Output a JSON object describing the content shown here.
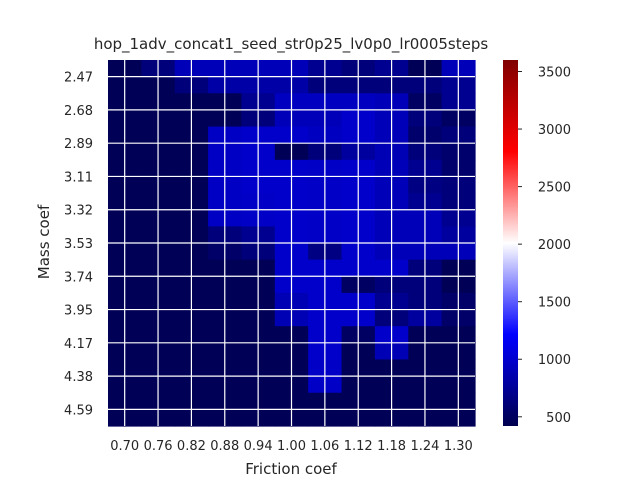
{
  "chart_data": {
    "type": "heatmap",
    "title": "hop_1adv_concat1_seed_str0p25_lv0p0_lr0005steps",
    "xlabel": "Friction coef",
    "ylabel": "Mass coef",
    "x_tick_labels": [
      "0.70",
      "0.76",
      "0.82",
      "0.88",
      "0.94",
      "1.00",
      "1.06",
      "1.12",
      "1.18",
      "1.24",
      "1.30"
    ],
    "y_tick_labels": [
      "2.47",
      "2.68",
      "2.89",
      "3.11",
      "3.32",
      "3.53",
      "3.74",
      "3.95",
      "4.17",
      "4.38",
      "4.59"
    ],
    "grid": true,
    "colorscale": "seismic",
    "colorbar": {
      "vmin": 420,
      "vmax": 3600,
      "ticks": [
        500,
        1000,
        1500,
        2000,
        2500,
        3000,
        3500
      ]
    },
    "rows": 22,
    "cols": 22,
    "values": [
      [
        460,
        460,
        620,
        620,
        900,
        900,
        900,
        900,
        900,
        900,
        900,
        900,
        720,
        720,
        620,
        620,
        720,
        720,
        460,
        460,
        900,
        900
      ],
      [
        460,
        460,
        460,
        460,
        620,
        620,
        820,
        820,
        820,
        820,
        820,
        820,
        620,
        620,
        620,
        620,
        620,
        620,
        620,
        620,
        720,
        720
      ],
      [
        460,
        460,
        460,
        460,
        460,
        460,
        460,
        460,
        720,
        720,
        940,
        940,
        940,
        940,
        940,
        940,
        900,
        900,
        520,
        520,
        720,
        720
      ],
      [
        460,
        460,
        460,
        460,
        460,
        460,
        460,
        460,
        620,
        620,
        900,
        900,
        900,
        900,
        980,
        980,
        900,
        900,
        620,
        620,
        520,
        520
      ],
      [
        460,
        460,
        460,
        460,
        460,
        460,
        950,
        950,
        980,
        980,
        980,
        980,
        940,
        940,
        980,
        980,
        900,
        900,
        560,
        560,
        620,
        620
      ],
      [
        460,
        460,
        460,
        460,
        460,
        460,
        950,
        950,
        980,
        980,
        460,
        460,
        620,
        620,
        780,
        780,
        880,
        880,
        620,
        620,
        560,
        560
      ],
      [
        460,
        460,
        460,
        460,
        460,
        460,
        950,
        950,
        980,
        980,
        980,
        980,
        960,
        960,
        980,
        980,
        900,
        900,
        720,
        720,
        560,
        560
      ],
      [
        460,
        460,
        460,
        460,
        460,
        460,
        950,
        950,
        980,
        980,
        980,
        980,
        960,
        960,
        980,
        980,
        900,
        900,
        660,
        660,
        620,
        620
      ],
      [
        460,
        460,
        460,
        460,
        460,
        460,
        950,
        950,
        960,
        960,
        980,
        980,
        960,
        960,
        980,
        980,
        900,
        900,
        720,
        720,
        620,
        620
      ],
      [
        460,
        460,
        460,
        460,
        460,
        460,
        950,
        950,
        960,
        960,
        980,
        980,
        960,
        960,
        980,
        980,
        900,
        900,
        900,
        900,
        720,
        720
      ],
      [
        460,
        460,
        460,
        460,
        460,
        460,
        620,
        620,
        720,
        720,
        980,
        980,
        960,
        960,
        980,
        980,
        900,
        900,
        900,
        900,
        780,
        780
      ],
      [
        460,
        460,
        460,
        460,
        460,
        460,
        540,
        540,
        620,
        620,
        980,
        980,
        660,
        660,
        980,
        980,
        900,
        900,
        900,
        900,
        900,
        900
      ],
      [
        460,
        460,
        460,
        460,
        460,
        460,
        460,
        460,
        460,
        460,
        980,
        980,
        980,
        980,
        980,
        980,
        980,
        980,
        620,
        620,
        460,
        460
      ],
      [
        460,
        460,
        460,
        460,
        460,
        460,
        460,
        460,
        460,
        460,
        980,
        980,
        980,
        980,
        520,
        520,
        620,
        620,
        620,
        620,
        460,
        460
      ],
      [
        460,
        460,
        460,
        460,
        460,
        460,
        460,
        460,
        460,
        460,
        880,
        880,
        980,
        980,
        980,
        980,
        720,
        720,
        620,
        620,
        540,
        540
      ],
      [
        460,
        460,
        460,
        460,
        460,
        460,
        460,
        460,
        460,
        460,
        880,
        880,
        980,
        980,
        980,
        980,
        620,
        620,
        780,
        780,
        540,
        540
      ],
      [
        460,
        460,
        460,
        460,
        460,
        460,
        460,
        460,
        460,
        460,
        460,
        460,
        980,
        980,
        520,
        520,
        980,
        980,
        460,
        460,
        460,
        460
      ],
      [
        460,
        460,
        460,
        460,
        460,
        460,
        460,
        460,
        460,
        460,
        460,
        460,
        980,
        980,
        460,
        460,
        880,
        880,
        460,
        460,
        460,
        460
      ],
      [
        460,
        460,
        460,
        460,
        460,
        460,
        460,
        460,
        460,
        460,
        460,
        460,
        960,
        960,
        460,
        460,
        460,
        460,
        460,
        460,
        460,
        460
      ],
      [
        460,
        460,
        460,
        460,
        460,
        460,
        460,
        460,
        460,
        460,
        460,
        460,
        960,
        960,
        460,
        460,
        460,
        460,
        460,
        460,
        460,
        460
      ],
      [
        460,
        460,
        460,
        460,
        460,
        460,
        460,
        460,
        460,
        460,
        460,
        460,
        460,
        460,
        460,
        460,
        460,
        460,
        460,
        460,
        460,
        460
      ],
      [
        460,
        460,
        460,
        460,
        460,
        460,
        460,
        460,
        460,
        460,
        460,
        460,
        460,
        460,
        460,
        460,
        460,
        460,
        460,
        460,
        460,
        460
      ]
    ]
  }
}
